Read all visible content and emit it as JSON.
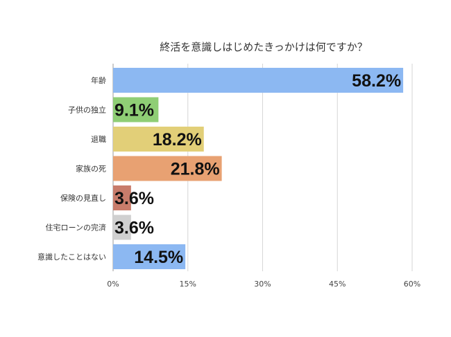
{
  "chart_data": {
    "type": "bar",
    "orientation": "horizontal",
    "title": "終活を意識しはじめたきっかけは何ですか？",
    "categories": [
      "年齢",
      "子供の独立",
      "退職",
      "家族の死",
      "保険の見直し",
      "住宅ローンの完済",
      "意識したことはない"
    ],
    "values": [
      58.2,
      9.1,
      18.2,
      21.8,
      3.6,
      3.6,
      14.5
    ],
    "value_labels": [
      "58.2%",
      "9.1%",
      "18.2%",
      "21.8%",
      "3.6%",
      "3.6%",
      "14.5%"
    ],
    "colors": [
      "#8cb8f2",
      "#8fce75",
      "#e2cf78",
      "#e8a172",
      "#c87c6b",
      "#d0d0d0",
      "#8cb8f2"
    ],
    "xlim": [
      0,
      60
    ],
    "xticks": [
      0,
      15,
      30,
      45,
      60
    ],
    "xtick_labels": [
      "0%",
      "15%",
      "30%",
      "45%",
      "60%"
    ],
    "xlabel": "",
    "ylabel": "",
    "grid": "vertical",
    "legend": "none"
  }
}
